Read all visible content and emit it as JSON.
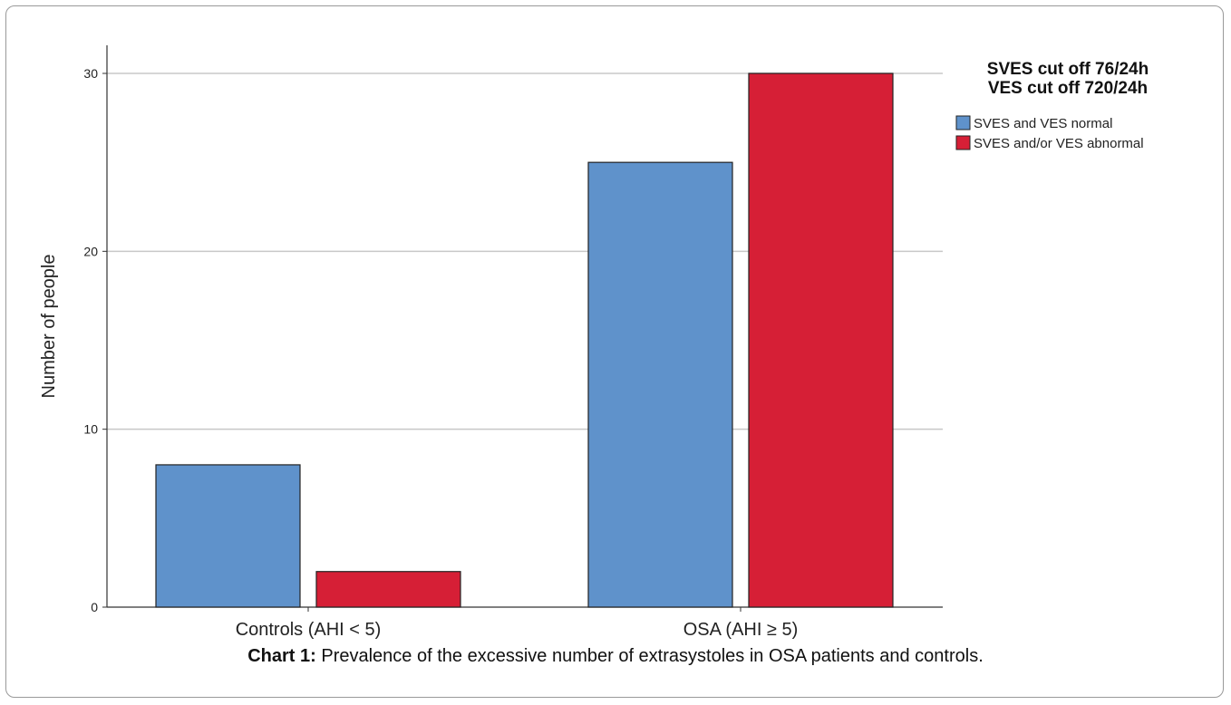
{
  "chart_data": {
    "type": "bar",
    "categories": [
      "Controls (AHI < 5)",
      "OSA (AHI ≥ 5)"
    ],
    "series": [
      {
        "name": "SVES and VES normal",
        "values": [
          8,
          25
        ],
        "color": "#5f92cb"
      },
      {
        "name": "SVES and/or VES abnormal",
        "values": [
          2,
          30
        ],
        "color": "#d61f36"
      }
    ],
    "ylabel": "Number of people",
    "xlabel": "",
    "ylim": [
      0,
      30
    ],
    "yticks": [
      0,
      10,
      20,
      30
    ],
    "grid": true,
    "legend": {
      "title_lines": [
        "SVES cut off 76/24h",
        "VES cut off 720/24h"
      ],
      "placement": "top-right"
    }
  },
  "caption": {
    "label": "Chart 1:",
    "text": " Prevalence of the excessive number of extrasystoles in OSA patients and controls."
  }
}
